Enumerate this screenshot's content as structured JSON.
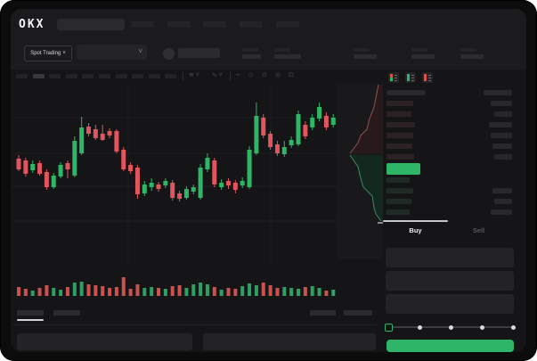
{
  "header": {
    "logo_text": "OKX"
  },
  "ticker": {
    "market_selector_label": "Spot Trading",
    "chevron": "˅"
  },
  "toolbar": {
    "icons": [
      {
        "name": "indicators-dropdown",
        "glyph": "≋ ˅"
      },
      {
        "name": "candle-style-dropdown",
        "glyph": "∿ ˅"
      },
      {
        "name": "line-type-icon",
        "glyph": "∼"
      },
      {
        "name": "draw-tool-icon",
        "glyph": "◇"
      },
      {
        "name": "snapshot-icon",
        "glyph": "⊙"
      },
      {
        "name": "settings-icon",
        "glyph": "◎"
      },
      {
        "name": "fullscreen-icon",
        "glyph": "⊡"
      }
    ]
  },
  "colors": {
    "green": "#2eb566",
    "red": "#e0565e",
    "vol_green": "#2f9e63",
    "vol_red": "#c9524f",
    "depth_red_fill": "#281a1b",
    "depth_red_line": "#8f5156",
    "depth_green_fill": "#13291f",
    "depth_green_line": "#3c8a66",
    "ask_bar": "#2c2225",
    "bid_bar": "#1f2b24"
  },
  "chart_data": {
    "type": "candlestick",
    "note_axes_visible": false,
    "candles": [
      [
        78,
        90,
        74,
        92,
        0
      ],
      [
        80,
        95,
        77,
        98,
        0
      ],
      [
        84,
        91,
        80,
        94,
        1
      ],
      [
        83,
        95,
        80,
        97,
        0
      ],
      [
        93,
        110,
        90,
        113,
        0
      ],
      [
        97,
        110,
        94,
        112,
        1
      ],
      [
        85,
        98,
        82,
        100,
        1
      ],
      [
        83,
        90,
        80,
        100,
        0
      ],
      [
        58,
        97,
        53,
        99,
        1
      ],
      [
        43,
        72,
        31,
        74,
        1
      ],
      [
        42,
        50,
        38,
        53,
        0
      ],
      [
        45,
        55,
        40,
        57,
        0
      ],
      [
        50,
        57,
        40,
        58,
        0
      ],
      [
        47,
        52,
        44,
        55,
        0
      ],
      [
        47,
        70,
        45,
        72,
        0
      ],
      [
        68,
        90,
        65,
        92,
        0
      ],
      [
        85,
        92,
        82,
        95,
        0
      ],
      [
        88,
        118,
        85,
        123,
        0
      ],
      [
        107,
        117,
        103,
        120,
        1
      ],
      [
        105,
        110,
        100,
        114,
        1
      ],
      [
        107,
        112,
        104,
        115,
        0
      ],
      [
        103,
        108,
        100,
        111,
        1
      ],
      [
        105,
        122,
        102,
        125,
        0
      ],
      [
        117,
        123,
        114,
        126,
        0
      ],
      [
        112,
        122,
        109,
        124,
        1
      ],
      [
        110,
        115,
        107,
        118,
        1
      ],
      [
        88,
        122,
        84,
        124,
        1
      ],
      [
        77,
        90,
        72,
        93,
        1
      ],
      [
        80,
        107,
        77,
        110,
        0
      ],
      [
        105,
        110,
        101,
        113,
        1
      ],
      [
        103,
        108,
        100,
        112,
        0
      ],
      [
        105,
        113,
        102,
        117,
        0
      ],
      [
        103,
        108,
        99,
        111,
        1
      ],
      [
        68,
        110,
        64,
        112,
        1
      ],
      [
        30,
        72,
        15,
        74,
        1
      ],
      [
        32,
        52,
        28,
        55,
        0
      ],
      [
        50,
        65,
        47,
        68,
        0
      ],
      [
        62,
        72,
        58,
        75,
        0
      ],
      [
        65,
        73,
        58,
        76,
        1
      ],
      [
        57,
        63,
        53,
        66,
        1
      ],
      [
        28,
        62,
        24,
        64,
        1
      ],
      [
        40,
        53,
        36,
        56,
        0
      ],
      [
        32,
        43,
        28,
        46,
        1
      ],
      [
        20,
        33,
        15,
        36,
        1
      ],
      [
        30,
        43,
        26,
        46,
        0
      ],
      [
        32,
        40,
        28,
        43,
        1
      ]
    ],
    "volume": [
      10,
      8,
      6,
      9,
      12,
      9,
      7,
      10,
      15,
      16,
      13,
      12,
      11,
      9,
      10,
      21,
      8,
      13,
      9,
      10,
      9,
      8,
      11,
      12,
      9,
      13,
      15,
      13,
      10,
      7,
      9,
      8,
      11,
      14,
      12,
      15,
      12,
      9,
      10,
      9,
      8,
      10,
      11,
      9,
      6,
      7
    ],
    "depth": {
      "asks": [
        [
          47,
          0
        ],
        [
          44,
          15
        ],
        [
          42,
          25
        ],
        [
          37,
          38
        ],
        [
          34,
          50
        ],
        [
          27,
          57
        ],
        [
          24,
          65
        ],
        [
          19,
          72
        ],
        [
          15,
          77
        ]
      ],
      "bids": [
        [
          15,
          79
        ],
        [
          24,
          92
        ],
        [
          27,
          105
        ],
        [
          30,
          115
        ],
        [
          40,
          125
        ],
        [
          42,
          138
        ],
        [
          44,
          145
        ],
        [
          50,
          153
        ]
      ]
    }
  },
  "order_book": {
    "view_icons": [
      {
        "name": "book-both-icon",
        "top": "#d9534f",
        "bottom": "#2eb566"
      },
      {
        "name": "book-bids-icon",
        "top": "#2eb566",
        "bottom": "#2eb566"
      },
      {
        "name": "book-asks-icon",
        "top": "#d9534f",
        "bottom": "#d9534f"
      }
    ],
    "asks": [
      [
        30,
        24
      ],
      [
        28,
        20
      ],
      [
        32,
        26
      ],
      [
        30,
        24
      ],
      [
        29,
        22
      ],
      [
        31,
        20
      ]
    ],
    "bids": [
      [
        26,
        0
      ],
      [
        30,
        22
      ],
      [
        28,
        20
      ],
      [
        26,
        24
      ]
    ],
    "last_price_bar": {
      "color": "#2eb566",
      "width": 38
    }
  },
  "trade_panel": {
    "buy_tab_label": "Buy",
    "sell_tab_label": "Sell",
    "slider_stops": [
      0,
      25,
      50,
      75,
      100
    ],
    "submit_button_color": "#2fb567"
  }
}
